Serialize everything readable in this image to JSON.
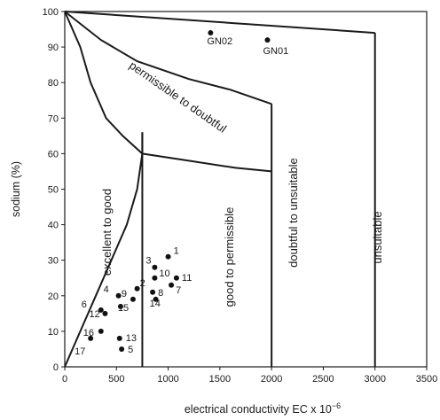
{
  "chart_data": {
    "type": "scatter",
    "xlabel": "electrical conductivity EC x 10",
    "xlabel_exponent": "−6",
    "ylabel": "sodium (%)",
    "xlim": [
      0,
      3500
    ],
    "ylim": [
      0,
      100
    ],
    "x_ticks": [
      0,
      500,
      1000,
      1500,
      2000,
      2500,
      3000,
      3500
    ],
    "y_ticks": [
      0,
      10,
      20,
      30,
      40,
      50,
      60,
      70,
      80,
      90,
      100
    ],
    "grid": false,
    "points": [
      {
        "label": "1",
        "x": 1000,
        "y": 31
      },
      {
        "label": "2",
        "x": 700,
        "y": 22
      },
      {
        "label": "3",
        "x": 870,
        "y": 28
      },
      {
        "label": "4",
        "x": 520,
        "y": 20
      },
      {
        "label": "5",
        "x": 550,
        "y": 5
      },
      {
        "label": "6",
        "x": 350,
        "y": 16
      },
      {
        "label": "7",
        "x": 1030,
        "y": 23
      },
      {
        "label": "8",
        "x": 850,
        "y": 21
      },
      {
        "label": "9",
        "x": 660,
        "y": 19
      },
      {
        "label": "10",
        "x": 870,
        "y": 25
      },
      {
        "label": "11",
        "x": 1080,
        "y": 25
      },
      {
        "label": "12",
        "x": 390,
        "y": 15
      },
      {
        "label": "13",
        "x": 530,
        "y": 8
      },
      {
        "label": "14",
        "x": 880,
        "y": 19
      },
      {
        "label": "15",
        "x": 540,
        "y": 17
      },
      {
        "label": "16",
        "x": 350,
        "y": 10
      },
      {
        "label": "17",
        "x": 250,
        "y": 8
      },
      {
        "label": "GN02",
        "x": 1410,
        "y": 94
      },
      {
        "label": "GN01",
        "x": 1960,
        "y": 92
      }
    ],
    "zones": [
      {
        "label": "excellent to good"
      },
      {
        "label": "good to permissible"
      },
      {
        "label": "permissible to doubtful"
      },
      {
        "label": "doubtful to unsuitable"
      },
      {
        "label": "unsuitable"
      }
    ]
  }
}
